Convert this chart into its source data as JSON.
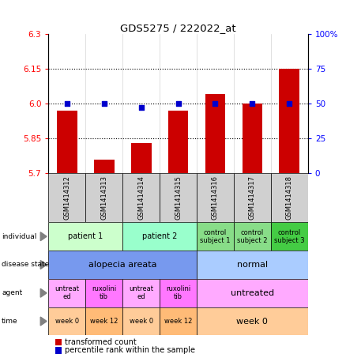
{
  "title": "GDS5275 / 222022_at",
  "samples": [
    "GSM1414312",
    "GSM1414313",
    "GSM1414314",
    "GSM1414315",
    "GSM1414316",
    "GSM1414317",
    "GSM1414318"
  ],
  "bar_values": [
    5.97,
    5.76,
    5.83,
    5.97,
    6.04,
    6.0,
    6.15
  ],
  "dot_values": [
    50,
    50,
    47,
    50,
    50,
    50,
    50
  ],
  "ylim_left": [
    5.7,
    6.3
  ],
  "ylim_right": [
    0,
    100
  ],
  "yticks_left": [
    5.7,
    5.85,
    6.0,
    6.15,
    6.3
  ],
  "yticks_right": [
    0,
    25,
    50,
    75,
    100
  ],
  "hlines": [
    5.85,
    6.0,
    6.15
  ],
  "bar_color": "#cc0000",
  "dot_color": "#0000cc",
  "row_labels": [
    "individual",
    "disease state",
    "agent",
    "time"
  ],
  "individual_spans": [
    [
      0,
      2,
      "patient 1",
      "#ccffcc"
    ],
    [
      2,
      4,
      "patient 2",
      "#99ffcc"
    ],
    [
      4,
      5,
      "control\nsubject 1",
      "#88dd88"
    ],
    [
      5,
      6,
      "control\nsubject 2",
      "#88dd88"
    ],
    [
      6,
      7,
      "control\nsubject 3",
      "#44cc44"
    ]
  ],
  "disease_spans": [
    [
      0,
      4,
      "alopecia areata",
      "#7799ee"
    ],
    [
      4,
      7,
      "normal",
      "#aaccff"
    ]
  ],
  "agent_spans": [
    [
      0,
      1,
      "untreat\ned",
      "#ffaaff"
    ],
    [
      1,
      2,
      "ruxolini\ntib",
      "#ff77ff"
    ],
    [
      2,
      3,
      "untreat\ned",
      "#ffaaff"
    ],
    [
      3,
      4,
      "ruxolini\ntib",
      "#ff77ff"
    ],
    [
      4,
      7,
      "untreated",
      "#ffaaff"
    ]
  ],
  "time_spans": [
    [
      0,
      1,
      "week 0",
      "#ffcc99"
    ],
    [
      1,
      2,
      "week 12",
      "#ffbb77"
    ],
    [
      2,
      3,
      "week 0",
      "#ffcc99"
    ],
    [
      3,
      4,
      "week 12",
      "#ffbb77"
    ],
    [
      4,
      7,
      "week 0",
      "#ffcc99"
    ]
  ]
}
